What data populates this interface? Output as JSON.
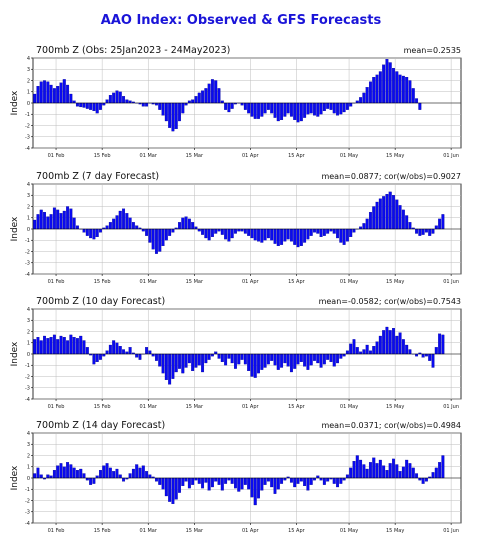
{
  "title": "AAO Index: Observed & GFS Forecasts",
  "ylabel": "Index",
  "colors": {
    "bar": "#0a0af0",
    "bar_edge": "#00007a",
    "title": "#1a14d8"
  },
  "chart_data": [
    {
      "type": "bar",
      "title": "700mb Z (Obs: 25Jan2023 - 24May2023)",
      "stat": "mean=0.2535",
      "ylim": [
        -4,
        4
      ],
      "yticks": [
        -4,
        -3,
        -2,
        -1,
        0,
        1,
        2,
        3,
        4
      ],
      "xticks": [
        "01 Feb",
        "15 Feb",
        "01 Mar",
        "15 Mar",
        "01 Apr",
        "15 Apr",
        "01 May",
        "15 May",
        "01 Jun"
      ],
      "xtick_days": [
        7,
        21,
        35,
        49,
        66,
        80,
        96,
        110,
        127
      ],
      "xlim": [
        0,
        130
      ],
      "grid": true,
      "values": [
        0.8,
        1.5,
        1.9,
        2.0,
        1.9,
        1.6,
        1.3,
        1.5,
        1.8,
        2.1,
        1.6,
        0.8,
        0.2,
        -0.3,
        -0.35,
        -0.4,
        -0.5,
        -0.6,
        -0.7,
        -0.9,
        -0.6,
        -0.2,
        0.3,
        0.7,
        0.9,
        1.1,
        1.0,
        0.6,
        0.3,
        0.2,
        0.1,
        0.0,
        -0.1,
        -0.3,
        -0.3,
        0.0,
        -0.1,
        -0.2,
        -0.6,
        -1.1,
        -1.6,
        -2.2,
        -2.5,
        -2.3,
        -1.6,
        -0.9,
        -0.2,
        0.2,
        0.3,
        0.6,
        0.9,
        1.1,
        1.3,
        1.7,
        2.1,
        2.0,
        1.3,
        0.2,
        -0.6,
        -0.8,
        -0.5,
        -0.1,
        0.0,
        -0.2,
        -0.6,
        -0.9,
        -1.2,
        -1.4,
        -1.4,
        -1.2,
        -0.9,
        -0.6,
        -0.9,
        -1.3,
        -1.6,
        -1.5,
        -1.2,
        -0.9,
        -1.2,
        -1.5,
        -1.7,
        -1.6,
        -1.3,
        -1.0,
        -0.9,
        -1.1,
        -1.2,
        -1.0,
        -0.7,
        -0.5,
        -0.6,
        -0.9,
        -1.1,
        -1.0,
        -0.8,
        -0.6,
        -0.3,
        0.0,
        0.2,
        0.5,
        0.9,
        1.4,
        1.9,
        2.3,
        2.5,
        2.8,
        3.4,
        3.9,
        3.6,
        3.1,
        2.8,
        2.5,
        2.4,
        2.3,
        2.0,
        1.3,
        0.4,
        -0.6
      ]
    },
    {
      "type": "bar",
      "title": "700mb Z (7 day Forecast)",
      "stat": "mean=0.0877; cor(w/obs)=0.9027",
      "ylim": [
        -4,
        4
      ],
      "yticks": [
        -4,
        -3,
        -2,
        -1,
        0,
        1,
        2,
        3,
        4
      ],
      "xticks": [
        "01 Feb",
        "15 Feb",
        "01 Mar",
        "15 Mar",
        "01 Apr",
        "15 Apr",
        "01 May",
        "15 May",
        "01 Jun"
      ],
      "xtick_days": [
        7,
        21,
        35,
        49,
        66,
        80,
        96,
        110,
        127
      ],
      "xlim": [
        0,
        130
      ],
      "grid": true,
      "values": [
        0.8,
        1.3,
        1.7,
        1.5,
        1.1,
        1.3,
        1.9,
        1.7,
        1.4,
        1.6,
        2.0,
        1.8,
        1.0,
        0.3,
        0.0,
        -0.3,
        -0.6,
        -0.8,
        -0.9,
        -0.7,
        -0.3,
        0.1,
        0.3,
        0.6,
        0.9,
        1.2,
        1.6,
        1.8,
        1.4,
        1.0,
        0.6,
        0.3,
        0.1,
        -0.2,
        -0.6,
        -1.2,
        -1.8,
        -2.2,
        -2.0,
        -1.5,
        -1.0,
        -0.6,
        -0.3,
        0.1,
        0.6,
        1.0,
        1.1,
        0.9,
        0.6,
        0.2,
        -0.2,
        -0.5,
        -0.8,
        -1.0,
        -0.7,
        -0.4,
        -0.2,
        -0.5,
        -0.9,
        -1.1,
        -0.8,
        -0.4,
        -0.2,
        -0.2,
        -0.4,
        -0.6,
        -0.8,
        -1.0,
        -1.1,
        -1.2,
        -1.0,
        -0.8,
        -1.0,
        -1.3,
        -1.5,
        -1.4,
        -1.1,
        -0.9,
        -1.1,
        -1.4,
        -1.6,
        -1.5,
        -1.2,
        -0.9,
        -0.6,
        -0.3,
        -0.4,
        -0.7,
        -0.6,
        -0.4,
        -0.2,
        -0.4,
        -0.8,
        -1.2,
        -1.4,
        -1.1,
        -0.7,
        -0.3,
        0.0,
        0.2,
        0.5,
        0.9,
        1.5,
        2.0,
        2.4,
        2.7,
        2.9,
        3.1,
        3.3,
        3.0,
        2.6,
        2.1,
        1.7,
        1.2,
        0.6,
        0.1,
        -0.4,
        -0.6,
        -0.5,
        -0.3,
        -0.6,
        -0.4,
        0.3,
        0.9,
        1.3
      ]
    },
    {
      "type": "bar",
      "title": "700mb Z (10 day Forecast)",
      "stat": "mean=-0.0582; cor(w/obs)=0.7543",
      "ylim": [
        -4,
        4
      ],
      "yticks": [
        -4,
        -3,
        -2,
        -1,
        0,
        1,
        2,
        3,
        4
      ],
      "xticks": [
        "01 Feb",
        "15 Feb",
        "01 Mar",
        "15 Mar",
        "01 Apr",
        "15 Apr",
        "01 May",
        "15 May",
        "01 Jun"
      ],
      "xtick_days": [
        7,
        21,
        35,
        49,
        66,
        80,
        96,
        110,
        127
      ],
      "xlim": [
        0,
        130
      ],
      "grid": true,
      "values": [
        1.3,
        1.5,
        1.2,
        1.6,
        1.4,
        1.5,
        1.7,
        1.3,
        1.6,
        1.5,
        1.2,
        1.7,
        1.5,
        1.4,
        1.6,
        1.2,
        0.6,
        -0.1,
        -0.9,
        -0.7,
        -0.5,
        -0.2,
        0.3,
        0.8,
        1.2,
        1.0,
        0.7,
        0.4,
        0.2,
        0.6,
        0.1,
        -0.3,
        -0.5,
        0.0,
        0.6,
        0.3,
        -0.2,
        -0.6,
        -1.1,
        -1.7,
        -2.3,
        -2.7,
        -2.2,
        -1.6,
        -1.3,
        -1.7,
        -1.2,
        -0.8,
        -1.5,
        -1.2,
        -1.0,
        -1.6,
        -0.8,
        -0.5,
        -0.2,
        0.2,
        -0.4,
        -0.7,
        -1.0,
        -0.4,
        -0.8,
        -1.3,
        -0.9,
        -0.5,
        -0.9,
        -1.5,
        -2.0,
        -2.1,
        -1.7,
        -1.4,
        -1.2,
        -0.9,
        -0.6,
        -1.0,
        -1.4,
        -1.2,
        -0.8,
        -1.1,
        -1.6,
        -1.3,
        -0.9,
        -0.7,
        -1.1,
        -1.4,
        -1.0,
        -0.6,
        -0.8,
        -1.2,
        -0.9,
        -0.5,
        -0.7,
        -1.1,
        -0.8,
        -0.4,
        -0.2,
        0.3,
        0.9,
        1.3,
        0.6,
        0.2,
        0.4,
        0.8,
        0.3,
        0.7,
        1.1,
        1.6,
        2.1,
        2.4,
        2.1,
        2.3,
        1.6,
        1.9,
        1.3,
        0.8,
        0.4,
        0.0,
        -0.2,
        0.1,
        -0.3,
        -0.2,
        -0.6,
        -1.2,
        0.6,
        1.8,
        1.7
      ]
    },
    {
      "type": "bar",
      "title": "700mb Z (14 day Forecast)",
      "stat": "mean=0.0371; cor(w/obs)=0.4984",
      "ylim": [
        -4,
        4
      ],
      "yticks": [
        -4,
        -3,
        -2,
        -1,
        0,
        1,
        2,
        3,
        4
      ],
      "xticks": [
        "01 Feb",
        "15 Feb",
        "01 Mar",
        "15 Mar",
        "01 Apr",
        "15 Apr",
        "01 May",
        "15 May",
        "01 Jun"
      ],
      "xtick_days": [
        7,
        21,
        35,
        49,
        66,
        80,
        96,
        110,
        127
      ],
      "xlim": [
        0,
        130
      ],
      "grid": true,
      "values": [
        0.4,
        0.9,
        0.3,
        -0.1,
        0.3,
        0.2,
        0.7,
        1.1,
        1.3,
        1.0,
        1.4,
        1.2,
        0.9,
        0.7,
        0.8,
        0.4,
        -0.2,
        -0.6,
        -0.5,
        0.2,
        0.7,
        1.1,
        1.3,
        0.9,
        0.6,
        0.8,
        0.3,
        -0.3,
        -0.1,
        0.4,
        0.8,
        1.2,
        0.9,
        1.1,
        0.6,
        0.3,
        0.1,
        -0.3,
        -0.6,
        -1.0,
        -1.6,
        -2.1,
        -2.3,
        -1.9,
        -1.3,
        -0.7,
        -0.3,
        -0.9,
        -0.6,
        -0.2,
        -0.5,
        -0.9,
        -0.4,
        -1.1,
        -0.8,
        -0.3,
        -0.6,
        -1.1,
        -0.5,
        -0.2,
        -0.5,
        -0.9,
        -1.2,
        -1.0,
        -0.6,
        -1.0,
        -1.7,
        -2.4,
        -1.8,
        -1.1,
        -0.6,
        -0.3,
        -0.8,
        -1.4,
        -1.0,
        -0.5,
        -0.2,
        0.1,
        -0.4,
        -0.8,
        -0.5,
        -0.3,
        -0.7,
        -1.1,
        -0.6,
        -0.2,
        0.2,
        -0.2,
        -0.6,
        -0.3,
        -0.1,
        -0.5,
        -0.8,
        -0.5,
        -0.2,
        0.3,
        0.9,
        1.5,
        2.0,
        1.6,
        1.2,
        0.8,
        1.4,
        1.8,
        1.3,
        1.6,
        1.1,
        0.7,
        1.3,
        1.7,
        1.2,
        0.6,
        1.0,
        1.6,
        1.3,
        0.9,
        0.4,
        -0.2,
        -0.5,
        -0.3,
        0.1,
        0.5,
        0.9,
        1.4,
        2.0
      ]
    }
  ]
}
